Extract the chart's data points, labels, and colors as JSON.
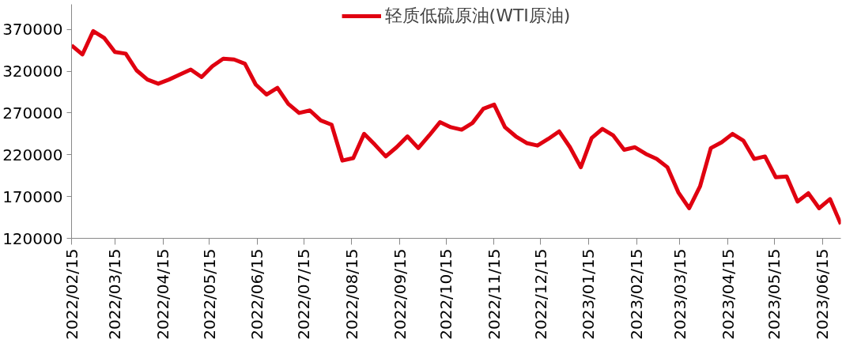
{
  "chart_data": {
    "type": "line",
    "legend": "top",
    "grid": false,
    "marker": "none",
    "line_style": "solid",
    "x": [
      "2022-02-15",
      "2022-02-22",
      "2022-03-01",
      "2022-03-08",
      "2022-03-15",
      "2022-03-22",
      "2022-03-29",
      "2022-04-05",
      "2022-04-12",
      "2022-04-19",
      "2022-04-26",
      "2022-05-03",
      "2022-05-10",
      "2022-05-17",
      "2022-05-24",
      "2022-05-31",
      "2022-06-07",
      "2022-06-14",
      "2022-06-21",
      "2022-06-28",
      "2022-07-05",
      "2022-07-12",
      "2022-07-19",
      "2022-07-26",
      "2022-08-02",
      "2022-08-09",
      "2022-08-16",
      "2022-08-23",
      "2022-08-30",
      "2022-09-06",
      "2022-09-13",
      "2022-09-20",
      "2022-09-27",
      "2022-10-04",
      "2022-10-11",
      "2022-10-18",
      "2022-10-25",
      "2022-11-01",
      "2022-11-08",
      "2022-11-15",
      "2022-11-22",
      "2022-11-29",
      "2022-12-06",
      "2022-12-13",
      "2022-12-20",
      "2022-12-27",
      "2023-01-03",
      "2023-01-10",
      "2023-01-17",
      "2023-01-24",
      "2023-01-31",
      "2023-02-07",
      "2023-02-14",
      "2023-02-21",
      "2023-02-28",
      "2023-03-07",
      "2023-03-14",
      "2023-03-21",
      "2023-03-28",
      "2023-04-04",
      "2023-04-11",
      "2023-04-18",
      "2023-04-25",
      "2023-05-02",
      "2023-05-09",
      "2023-05-16",
      "2023-05-23",
      "2023-05-30",
      "2023-06-06",
      "2023-06-13",
      "2023-06-20",
      "2023-06-27"
    ],
    "series": [
      {
        "name": "轻质低硫原油(WTI原油)",
        "color": "#e00010",
        "values": [
          351000,
          340000,
          368000,
          360000,
          343000,
          341000,
          321000,
          310000,
          305000,
          310000,
          316000,
          322000,
          313000,
          326000,
          335000,
          334000,
          329000,
          304000,
          292000,
          300000,
          281000,
          270000,
          273000,
          261000,
          256000,
          213000,
          216000,
          245000,
          232000,
          218000,
          229000,
          242000,
          228000,
          243000,
          259000,
          253000,
          250000,
          258000,
          275000,
          280000,
          253000,
          242000,
          234000,
          231000,
          239000,
          248000,
          229000,
          205000,
          240000,
          251000,
          243000,
          226000,
          229000,
          221000,
          215000,
          205000,
          175000,
          156000,
          182000,
          228000,
          235000,
          245000,
          237000,
          215000,
          218000,
          193000,
          194000,
          164000,
          174000,
          156000,
          167000,
          137000
        ]
      }
    ],
    "xlim": [
      "2022-02-15",
      "2023-06-27"
    ],
    "xticks": [
      {
        "value": "2022-02-15",
        "label": "2022/02/15"
      },
      {
        "value": "2022-03-15",
        "label": "2022/03/15"
      },
      {
        "value": "2022-04-15",
        "label": "2022/04/15"
      },
      {
        "value": "2022-05-15",
        "label": "2022/05/15"
      },
      {
        "value": "2022-06-15",
        "label": "2022/06/15"
      },
      {
        "value": "2022-07-15",
        "label": "2022/07/15"
      },
      {
        "value": "2022-08-15",
        "label": "2022/08/15"
      },
      {
        "value": "2022-09-15",
        "label": "2022/09/15"
      },
      {
        "value": "2022-10-15",
        "label": "2022/10/15"
      },
      {
        "value": "2022-11-15",
        "label": "2022/11/15"
      },
      {
        "value": "2022-12-15",
        "label": "2022/12/15"
      },
      {
        "value": "2023-01-15",
        "label": "2023/01/15"
      },
      {
        "value": "2023-02-15",
        "label": "2023/02/15"
      },
      {
        "value": "2023-03-15",
        "label": "2023/03/15"
      },
      {
        "value": "2023-04-15",
        "label": "2023/04/15"
      },
      {
        "value": "2023-05-15",
        "label": "2023/05/15"
      },
      {
        "value": "2023-06-15",
        "label": "2023/06/15"
      }
    ],
    "ylim": [
      120000,
      400000
    ],
    "yticks": [
      120000,
      170000,
      220000,
      270000,
      320000,
      370000
    ]
  }
}
